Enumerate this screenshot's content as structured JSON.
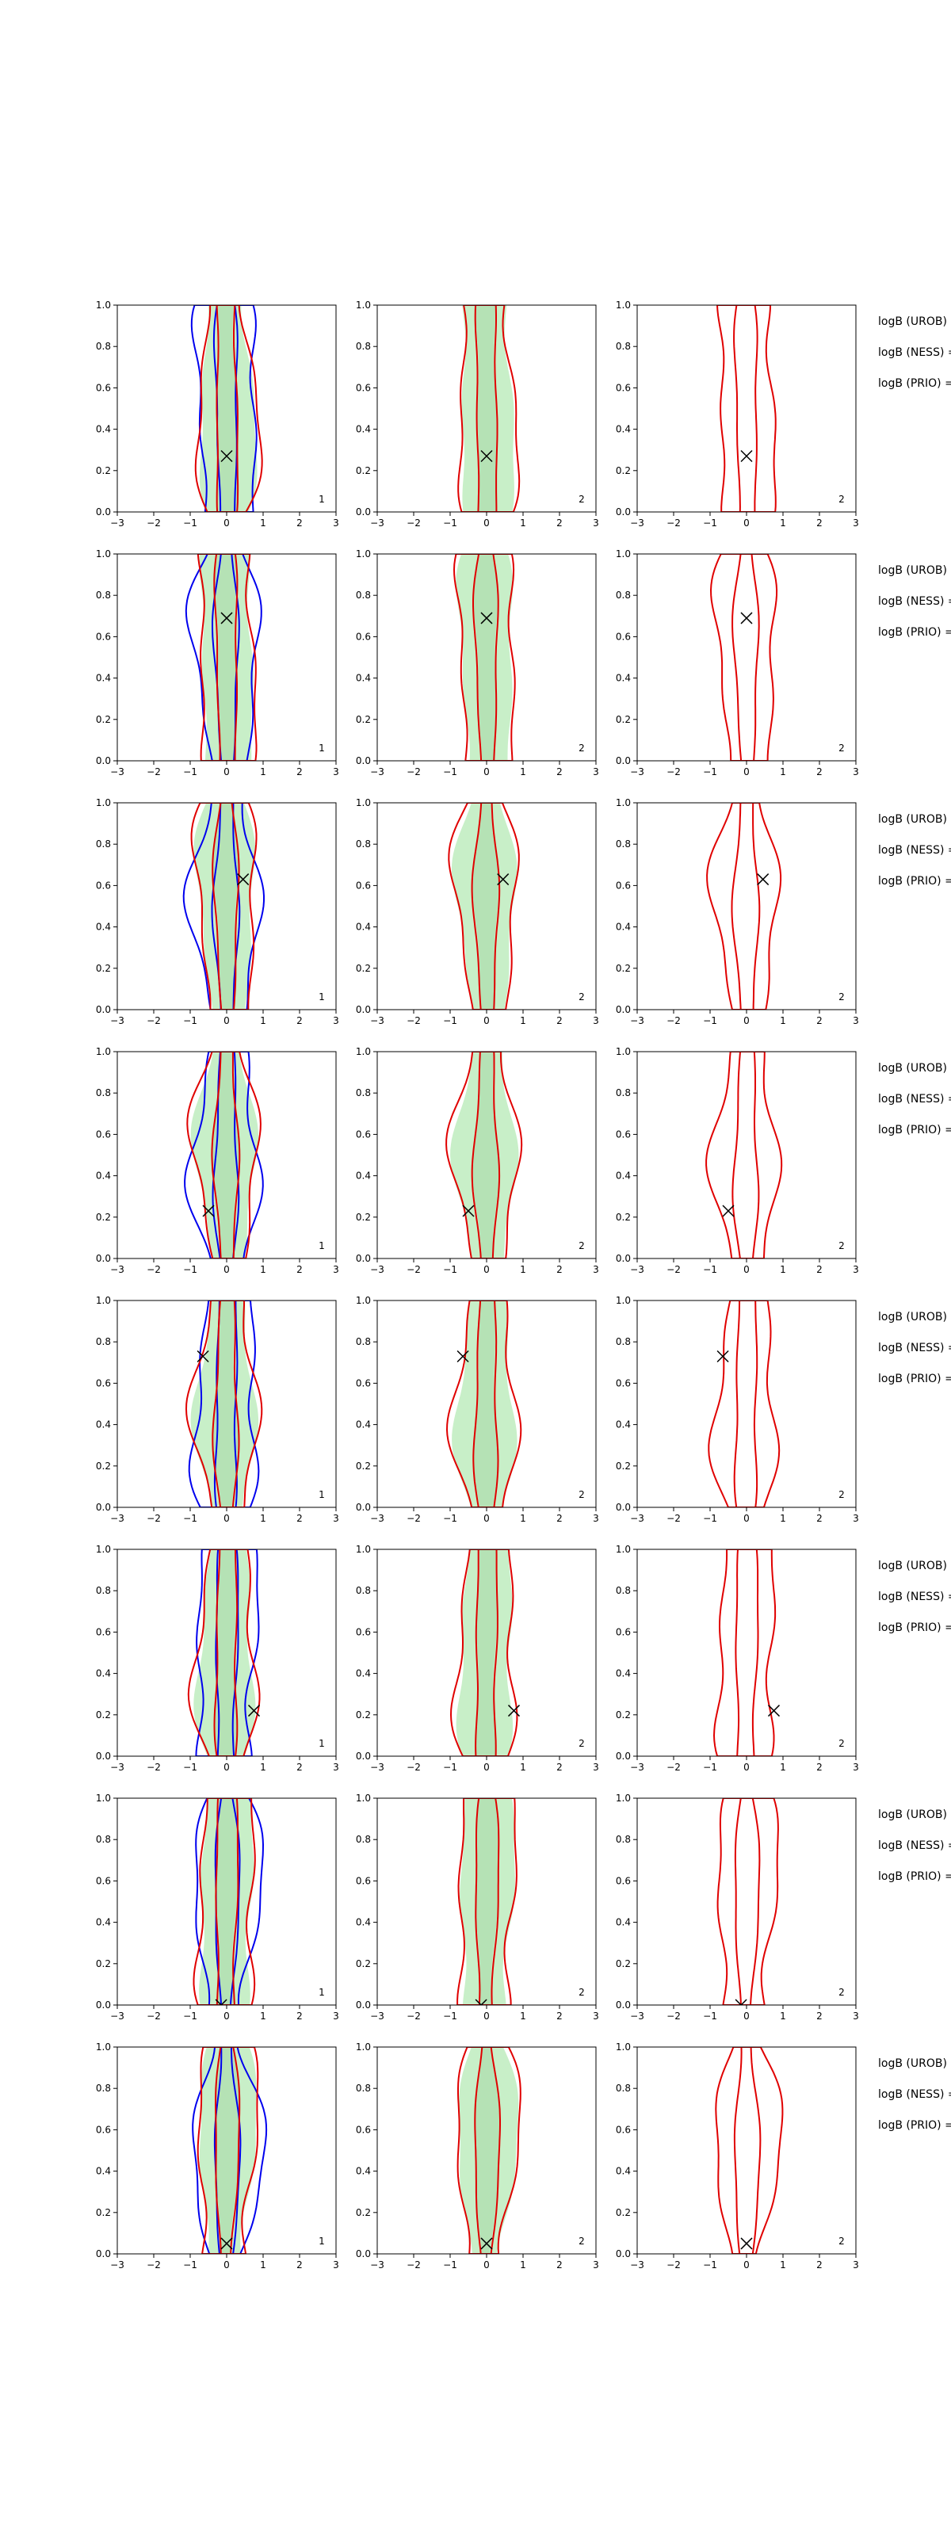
{
  "figure": {
    "row_count": 8,
    "logb_prefixes": [
      "logB (UROB) =",
      "logB (NESS) =",
      "logB (PRIO) ="
    ]
  },
  "colors": {
    "contour_primary": "#e00000",
    "contour_secondary": "#0000ee",
    "fill_outer": "#c8efc8",
    "fill_inner": "#a8d8a8",
    "marker": "#000000",
    "axis": "#000000"
  },
  "chart_data": [
    {
      "row": 1,
      "type": "contour",
      "xlim": [
        -3,
        3
      ],
      "ylim": [
        0,
        1
      ],
      "xticks": [
        "−3",
        "−2",
        "−1",
        "0",
        "1",
        "2",
        "3"
      ],
      "yticks": [
        "0.0",
        "0.2",
        "0.4",
        "0.6",
        "0.8",
        "1.0"
      ],
      "marker": {
        "x": 0.0,
        "y": 0.27
      },
      "panel_labels": [
        "1",
        "2",
        "2"
      ]
    },
    {
      "row": 2,
      "type": "contour",
      "xlim": [
        -3,
        3
      ],
      "ylim": [
        0,
        1
      ],
      "xticks": [
        "−3",
        "−2",
        "−1",
        "0",
        "1",
        "2",
        "3"
      ],
      "yticks": [
        "0.0",
        "0.2",
        "0.4",
        "0.6",
        "0.8",
        "1.0"
      ],
      "marker": {
        "x": 0.0,
        "y": 0.69
      },
      "panel_labels": [
        "1",
        "2",
        "2"
      ]
    },
    {
      "row": 3,
      "type": "contour",
      "xlim": [
        -3,
        3
      ],
      "ylim": [
        0,
        1
      ],
      "xticks": [
        "−3",
        "−2",
        "−1",
        "0",
        "1",
        "2",
        "3"
      ],
      "yticks": [
        "0.0",
        "0.2",
        "0.4",
        "0.6",
        "0.8",
        "1.0"
      ],
      "marker": {
        "x": 0.45,
        "y": 0.63
      },
      "panel_labels": [
        "1",
        "2",
        "2"
      ]
    },
    {
      "row": 4,
      "type": "contour",
      "xlim": [
        -3,
        3
      ],
      "ylim": [
        0,
        1
      ],
      "xticks": [
        "−3",
        "−2",
        "−1",
        "0",
        "1",
        "2",
        "3"
      ],
      "yticks": [
        "0.0",
        "0.2",
        "0.4",
        "0.6",
        "0.8",
        "1.0"
      ],
      "marker": {
        "x": -0.5,
        "y": 0.23
      },
      "panel_labels": [
        "1",
        "2",
        "2"
      ]
    },
    {
      "row": 5,
      "type": "contour",
      "xlim": [
        -3,
        3
      ],
      "ylim": [
        0,
        1
      ],
      "xticks": [
        "−3",
        "−2",
        "−1",
        "0",
        "1",
        "2",
        "3"
      ],
      "yticks": [
        "0.0",
        "0.2",
        "0.4",
        "0.6",
        "0.8",
        "1.0"
      ],
      "marker": {
        "x": -0.65,
        "y": 0.73
      },
      "panel_labels": [
        "1",
        "2",
        "2"
      ]
    },
    {
      "row": 6,
      "type": "contour",
      "xlim": [
        -3,
        3
      ],
      "ylim": [
        0,
        1
      ],
      "xticks": [
        "−3",
        "−2",
        "−1",
        "0",
        "1",
        "2",
        "3"
      ],
      "yticks": [
        "0.0",
        "0.2",
        "0.4",
        "0.6",
        "0.8",
        "1.0"
      ],
      "marker": {
        "x": 0.75,
        "y": 0.22
      },
      "panel_labels": [
        "1",
        "2",
        "2"
      ]
    },
    {
      "row": 7,
      "type": "contour",
      "xlim": [
        -3,
        3
      ],
      "ylim": [
        0,
        1
      ],
      "xticks": [
        "−3",
        "−2",
        "−1",
        "0",
        "1",
        "2",
        "3"
      ],
      "yticks": [
        "0.0",
        "0.2",
        "0.4",
        "0.6",
        "0.8",
        "1.0"
      ],
      "marker": {
        "x": -0.15,
        "y": 0.0
      },
      "panel_labels": [
        "1",
        "2",
        "2"
      ]
    },
    {
      "row": 8,
      "type": "contour",
      "xlim": [
        -3,
        3
      ],
      "ylim": [
        0,
        1
      ],
      "xticks": [
        "−3",
        "−2",
        "−1",
        "0",
        "1",
        "2",
        "3"
      ],
      "yticks": [
        "0.0",
        "0.2",
        "0.4",
        "0.6",
        "0.8",
        "1.0"
      ],
      "marker": {
        "x": 0.0,
        "y": 0.05
      },
      "panel_labels": [
        "1",
        "2",
        "2"
      ]
    }
  ]
}
